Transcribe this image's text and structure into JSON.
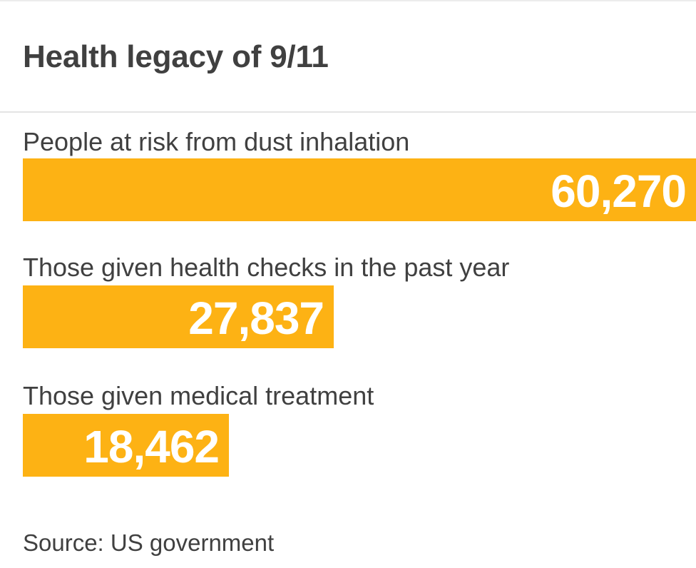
{
  "chart_data": {
    "type": "bar",
    "orientation": "horizontal",
    "title": "Health legacy of 9/11",
    "categories": [
      "People at risk from dust inhalation",
      "Those given health checks in the past year",
      "Those given medical treatment"
    ],
    "values": [
      60270,
      27837,
      18462
    ],
    "value_labels": [
      "60,270",
      "27,837",
      "18,462"
    ],
    "xlabel": "",
    "ylabel": "",
    "grid": false,
    "legend": "none",
    "bar_color": "#fdb214",
    "value_label_color": "#ffffff",
    "source": "Source: US government"
  }
}
